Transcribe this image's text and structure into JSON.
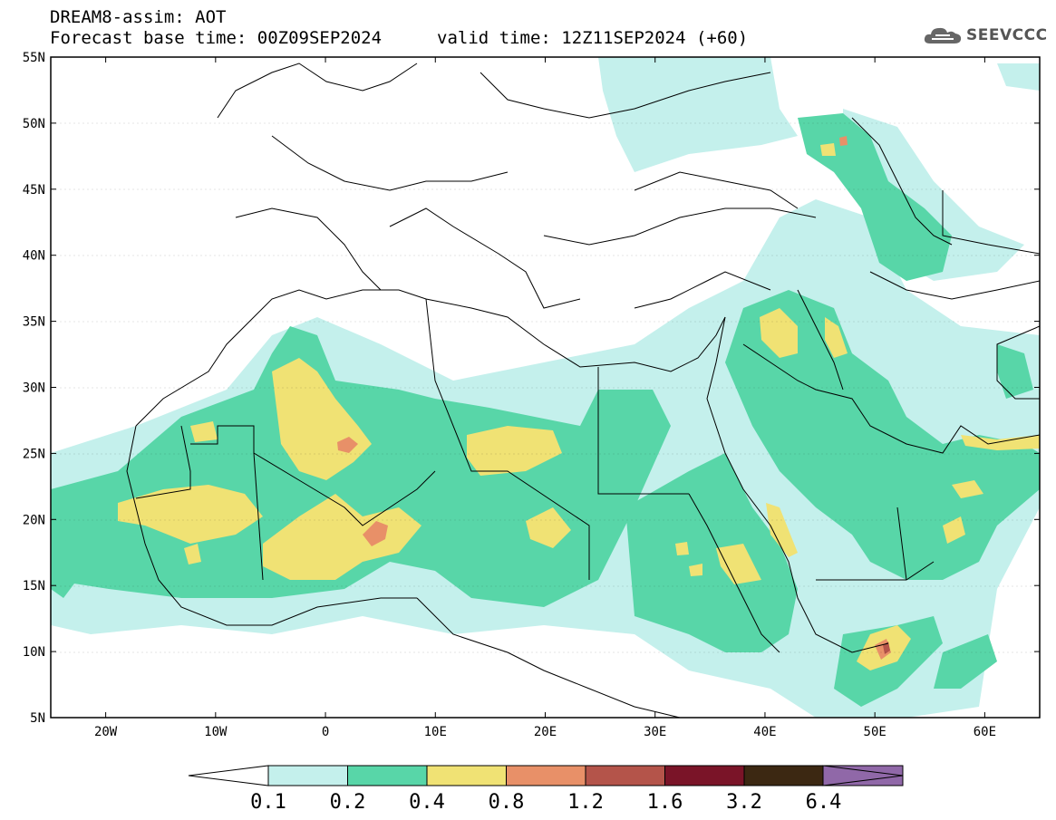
{
  "header": {
    "title": "DREAM8-assim: AOT",
    "base_time_label": "Forecast base time: 00Z09SEP2024",
    "valid_time_label": "valid time: 12Z11SEP2024 (+60)"
  },
  "logo": {
    "text": "SEEVCCC",
    "icon": "cloud-icon"
  },
  "map": {
    "lon_range": [
      -25,
      65
    ],
    "lat_range": [
      5,
      55
    ],
    "lat_ticks": [
      "5N",
      "10N",
      "15N",
      "20N",
      "25N",
      "30N",
      "35N",
      "40N",
      "45N",
      "50N",
      "55N"
    ],
    "lon_ticks": [
      "20W",
      "10W",
      "0",
      "10E",
      "20E",
      "30E",
      "40E",
      "50E",
      "60E"
    ]
  },
  "colorbar": {
    "labels": [
      "0.1",
      "0.2",
      "0.4",
      "0.8",
      "1.2",
      "1.6",
      "3.2",
      "6.4"
    ],
    "colors": [
      "#c4f0ec",
      "#58d6a8",
      "#f0e274",
      "#e89068",
      "#b4544a",
      "#7a1428",
      "#3c2812",
      "#9068a8"
    ]
  },
  "chart_data": {
    "type": "heatmap",
    "variable": "AOT",
    "levels": [
      0.1,
      0.2,
      0.4,
      0.8,
      1.2,
      1.6,
      3.2,
      6.4
    ],
    "xlim": [
      -25,
      65
    ],
    "ylim": [
      5,
      55
    ]
  }
}
